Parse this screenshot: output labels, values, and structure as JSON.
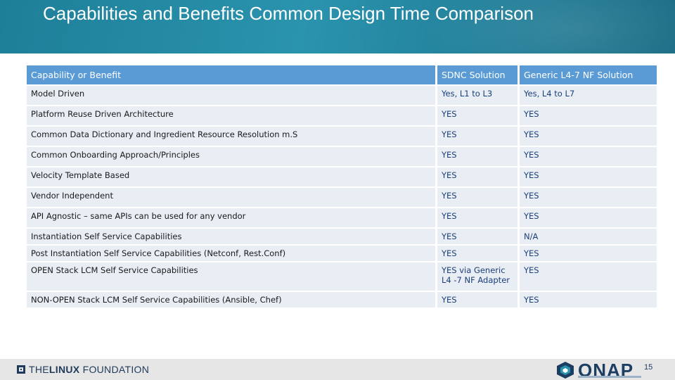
{
  "slide": {
    "title": "Capabilities and Benefits Common Design Time Comparison",
    "page_number": "15"
  },
  "table": {
    "headers": [
      "Capability or Benefit",
      "SDNC Solution",
      "Generic L4-7 NF Solution"
    ],
    "rows": [
      {
        "capability": "Model Driven",
        "sdnc": "Yes, L1 to L3",
        "generic": "Yes, L4 to L7"
      },
      {
        "capability": "Platform Reuse Driven Architecture",
        "sdnc": "YES",
        "generic": "YES"
      },
      {
        "capability": "Common Data Dictionary and Ingredient Resource Resolution m.S",
        "sdnc": "YES",
        "generic": "YES"
      },
      {
        "capability": "Common Onboarding Approach/Principles",
        "sdnc": "YES",
        "generic": "YES"
      },
      {
        "capability": "Velocity Template Based",
        "sdnc": "YES",
        "generic": "YES"
      },
      {
        "capability": "Vendor Independent",
        "sdnc": "YES",
        "generic": "YES"
      },
      {
        "capability": "API Agnostic – same APIs can be used for any vendor",
        "sdnc": "YES",
        "generic": "YES"
      },
      {
        "capability": "Instantiation Self Service Capabilities",
        "sdnc": "YES",
        "generic": "N/A"
      },
      {
        "capability": "Post Instantiation Self Service Capabilities (Netconf, Rest.Conf)",
        "sdnc": "YES",
        "generic": "YES"
      },
      {
        "capability": "OPEN Stack LCM Self Service Capabilities",
        "sdnc": "YES via Generic L4 -7 NF Adapter",
        "generic": "YES"
      },
      {
        "capability": "NON-OPEN Stack LCM Self Service Capabilities (Ansible, Chef)",
        "sdnc": "YES",
        "generic": "YES"
      }
    ]
  },
  "footer": {
    "linux_foundation_logo_text_1": "THE",
    "linux_foundation_logo_text_2": "LINUX",
    "linux_foundation_logo_text_3": " FOUNDATION",
    "onap_logo_text": "ONAP",
    "logo_icon": "onap-cube-icon"
  },
  "colors": {
    "header_bg": "#1e7f98",
    "table_header": "#5b9bd5",
    "table_row": "#e9edf4",
    "value_text": "#1b3f7a",
    "logo_navy": "#1c3e63"
  }
}
